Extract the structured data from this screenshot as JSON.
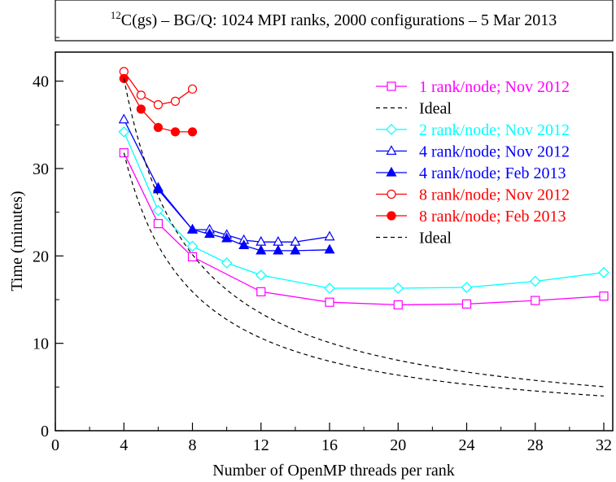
{
  "title": {
    "prefix_sup": "12",
    "main": "C(gs) – BG/Q: 1024 MPI ranks, 2000 configurations –  5 Mar 2013"
  },
  "chart_data": {
    "type": "line",
    "xlabel": "Number of OpenMP threads per rank",
    "ylabel": "Time (minutes)",
    "xlim": [
      0,
      32
    ],
    "ylim": [
      0,
      45
    ],
    "x_ticks": [
      "0",
      "4",
      "8",
      "12",
      "16",
      "20",
      "24",
      "28",
      "32"
    ],
    "y_ticks": [
      "0",
      "10",
      "20",
      "30",
      "40"
    ],
    "legend_position": "top-right",
    "series": [
      {
        "name": "1 rank/node; Nov 2012",
        "color": "#ff00ff",
        "marker": "square-open",
        "dashed": false,
        "x": [
          4,
          6,
          8,
          12,
          16,
          20,
          24,
          28,
          32
        ],
        "y": [
          31.8,
          23.7,
          19.9,
          15.9,
          14.7,
          14.4,
          14.5,
          14.9,
          15.4
        ]
      },
      {
        "name": "Ideal",
        "color": "#000000",
        "marker": "none",
        "dashed": true,
        "ideal": {
          "base_x": 4,
          "base_y": 31.8
        }
      },
      {
        "name": "2 rank/node; Nov 2012",
        "color": "#00ffff",
        "marker": "diamond-open",
        "dashed": false,
        "x": [
          4,
          6,
          8,
          10,
          12,
          16,
          20,
          24,
          28,
          32
        ],
        "y": [
          34.2,
          25.2,
          21.1,
          19.2,
          17.8,
          16.3,
          16.3,
          16.4,
          17.1,
          18.1
        ]
      },
      {
        "name": "4 rank/node; Nov 2012",
        "color": "#0000ff",
        "marker": "triangle-open",
        "dashed": false,
        "x": [
          4,
          6,
          8,
          9,
          10,
          11,
          12,
          13,
          14,
          16
        ],
        "y": [
          35.6,
          27.8,
          23.0,
          23.0,
          22.4,
          21.8,
          21.6,
          21.6,
          21.6,
          22.2
        ]
      },
      {
        "name": "4 rank/node; Feb 2013",
        "color": "#0000ff",
        "marker": "triangle-filled",
        "dashed": false,
        "x": [
          6,
          8,
          9,
          10,
          11,
          12,
          13,
          14,
          16
        ],
        "y": [
          27.6,
          23.0,
          22.5,
          22.0,
          21.2,
          20.6,
          20.6,
          20.6,
          20.7
        ]
      },
      {
        "name": "8 rank/node; Nov 2012",
        "color": "#ff0000",
        "marker": "circle-open",
        "dashed": false,
        "x": [
          4,
          5,
          6,
          7,
          8
        ],
        "y": [
          41.1,
          38.4,
          37.3,
          37.7,
          39.1
        ]
      },
      {
        "name": "8 rank/node; Feb 2013",
        "color": "#ff0000",
        "marker": "circle-filled",
        "dashed": false,
        "x": [
          4,
          5,
          6,
          7,
          8
        ],
        "y": [
          40.3,
          36.8,
          34.7,
          34.2,
          34.2
        ]
      },
      {
        "name": "Ideal",
        "color": "#000000",
        "marker": "none",
        "dashed": true,
        "ideal": {
          "base_x": 4,
          "base_y": 40.3
        }
      }
    ]
  }
}
